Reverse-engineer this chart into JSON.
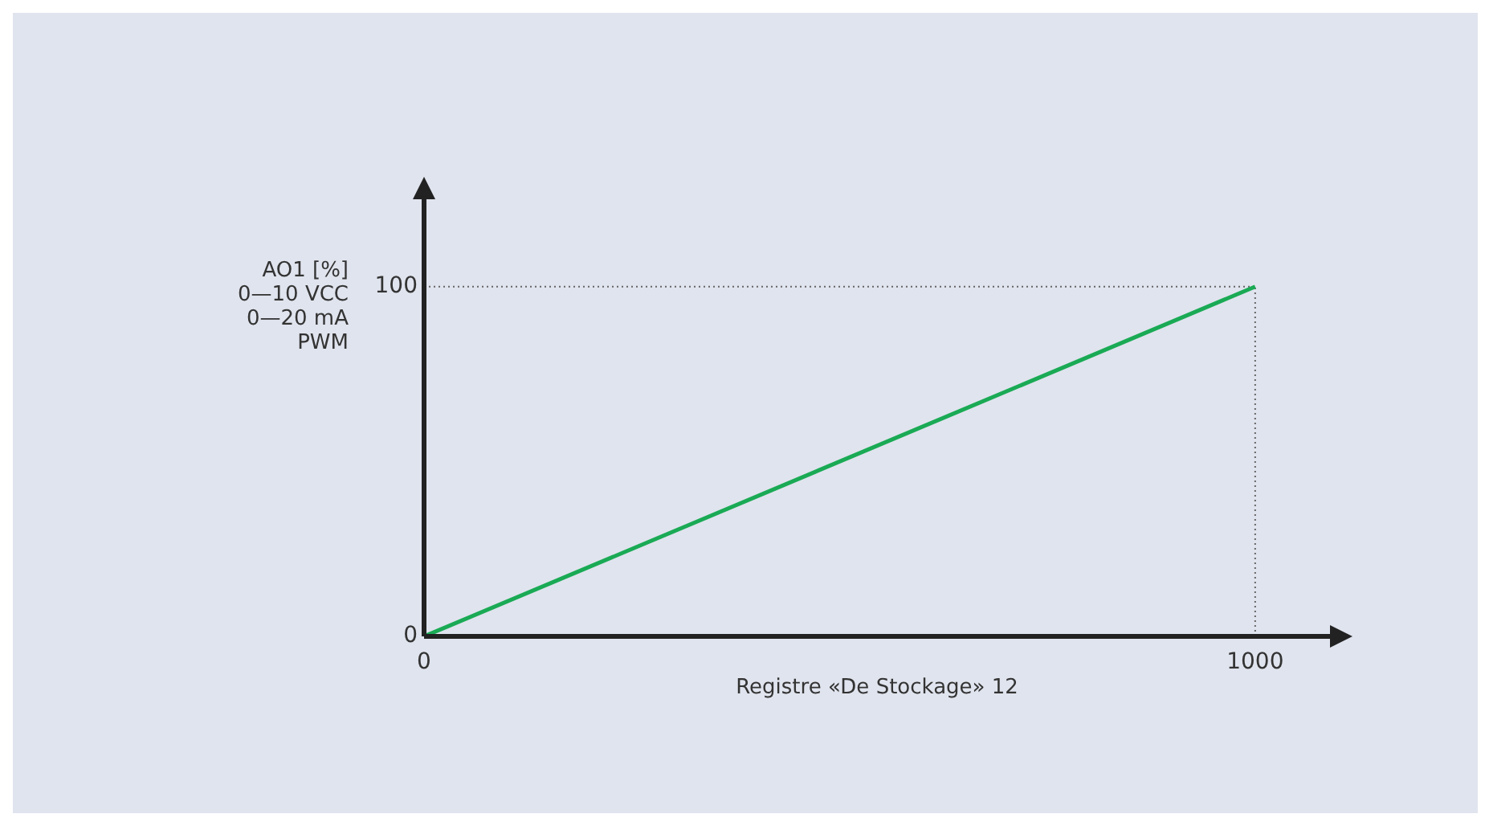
{
  "chart_data": {
    "type": "line",
    "xlabel": "Registre «De Stockage» 12",
    "ylabel": "AO1 [%]\n0—10 VCC\n0—20 mA\nPWM",
    "x": [
      0,
      1000
    ],
    "series": [
      {
        "color": "#1aaa55",
        "values": [
          0,
          100
        ]
      }
    ],
    "xlim": [
      0,
      1090
    ],
    "ylim": [
      0,
      125
    ],
    "xticks": [
      0,
      1000
    ],
    "yticks": [
      0,
      100
    ],
    "ref_lines": [
      {
        "axis": "y",
        "value": 100,
        "color": "#666666",
        "line_style": "dotted"
      },
      {
        "axis": "x",
        "value": 1000,
        "color": "#666666",
        "line_style": "dotted"
      }
    ],
    "grid": false,
    "legend": false,
    "marker": "none",
    "line_style": "solid"
  }
}
